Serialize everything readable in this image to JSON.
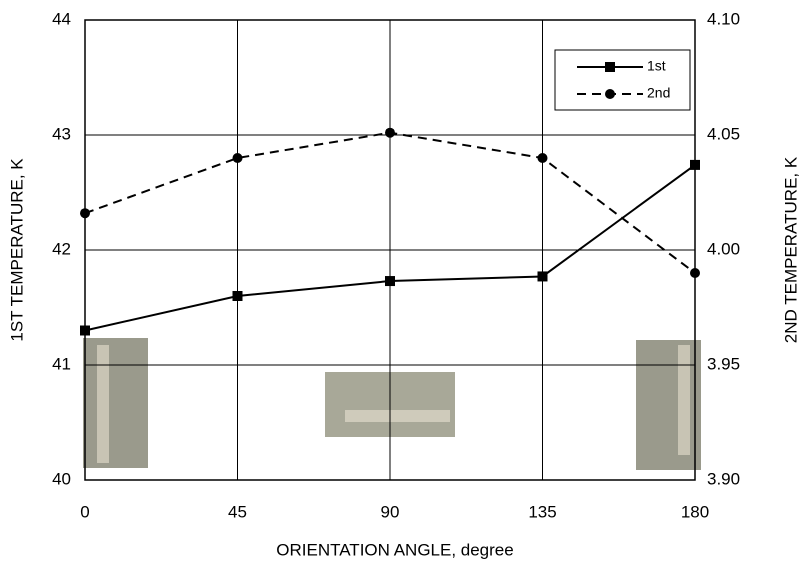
{
  "chart_data": {
    "type": "line",
    "x_label": "ORIENTATION ANGLE, degree",
    "y_label": "1ST TEMPERATURE, K",
    "y2_label": "2ND TEMPERATURE, K",
    "x": [
      0,
      45,
      90,
      135,
      180
    ],
    "xlim": [
      0,
      180
    ],
    "xticks": [
      0,
      45,
      90,
      135,
      180
    ],
    "ylim": [
      40,
      44
    ],
    "yticks": [
      40,
      41,
      42,
      43,
      44
    ],
    "y2lim": [
      3.9,
      4.1
    ],
    "y2ticks": [
      {
        "value": 3.9,
        "label": "3.90"
      },
      3.95,
      {
        "value": 4,
        "label": "4.00"
      },
      4.05,
      {
        "value": 4.1,
        "label": "4.10"
      }
    ],
    "grid": true,
    "legend": "upper right",
    "series": [
      {
        "name": "1st",
        "color": "#000000",
        "line_style": "solid",
        "marker": "square",
        "values": [
          41.3,
          41.6,
          41.73,
          41.77,
          42.74
        ]
      },
      {
        "name": "2nd",
        "color": "#000000",
        "line_style": "dashed",
        "marker": "circle",
        "axis": "y2",
        "values": [
          4.016,
          4.04,
          4.051,
          4.04,
          3.99
        ]
      }
    ]
  }
}
